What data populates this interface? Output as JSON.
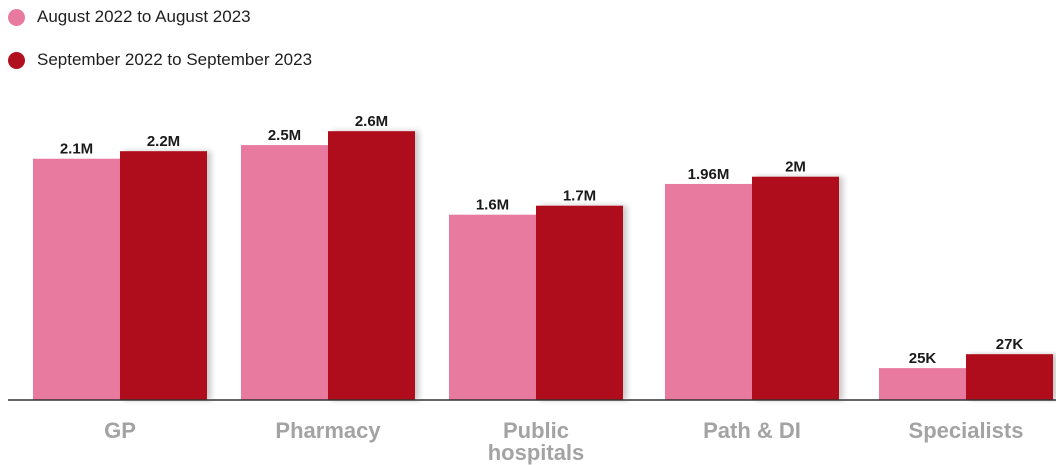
{
  "chart_data": {
    "type": "bar",
    "categories": [
      [
        "GP"
      ],
      [
        "Pharmacy"
      ],
      [
        "Public",
        "hospitals"
      ],
      [
        "Path & DI"
      ],
      [
        "Specialists"
      ]
    ],
    "series": [
      {
        "name": "August 2022 to August 2023",
        "color": "#e97a9f",
        "values": [
          2100000,
          2500000,
          1600000,
          1960000,
          25000
        ],
        "labels": [
          "2.1M",
          "2.5M",
          "1.6M",
          "1.96M",
          "25K"
        ],
        "display_fraction": [
          0.832,
          0.879,
          0.639,
          0.745,
          0.11
        ]
      },
      {
        "name": "September 2022 to September 2023",
        "color": "#b0101e",
        "values": [
          2200000,
          2600000,
          1700000,
          2000000,
          27000
        ],
        "labels": [
          "2.2M",
          "2.6M",
          "1.7M",
          "2M",
          "27K"
        ],
        "display_fraction": [
          0.858,
          0.927,
          0.67,
          0.77,
          0.158
        ]
      }
    ],
    "legend_position": "top-left",
    "grid": false,
    "axis_color": "#333333"
  }
}
